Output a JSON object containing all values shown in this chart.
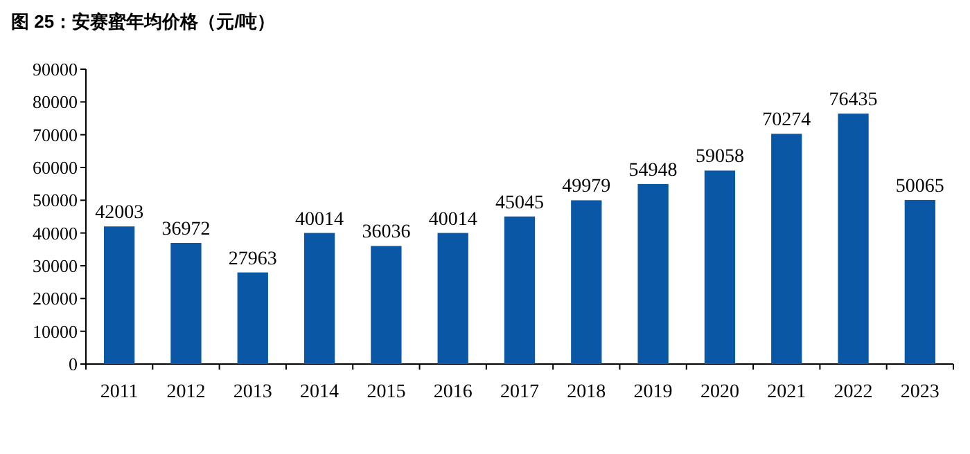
{
  "chart_data": {
    "type": "bar",
    "title": "图 25：安赛蜜年均价格（元/吨）",
    "categories": [
      "2011",
      "2012",
      "2013",
      "2014",
      "2015",
      "2016",
      "2017",
      "2018",
      "2019",
      "2020",
      "2021",
      "2022",
      "2023"
    ],
    "values": [
      42003,
      36972,
      27963,
      40014,
      36036,
      40014,
      45045,
      49979,
      54948,
      59058,
      70274,
      76435,
      50065
    ],
    "color": "#0a57a6",
    "ylim": [
      0,
      90000
    ],
    "yticks": [
      0,
      10000,
      20000,
      30000,
      40000,
      50000,
      60000,
      70000,
      80000,
      90000
    ],
    "data_labels": true
  }
}
